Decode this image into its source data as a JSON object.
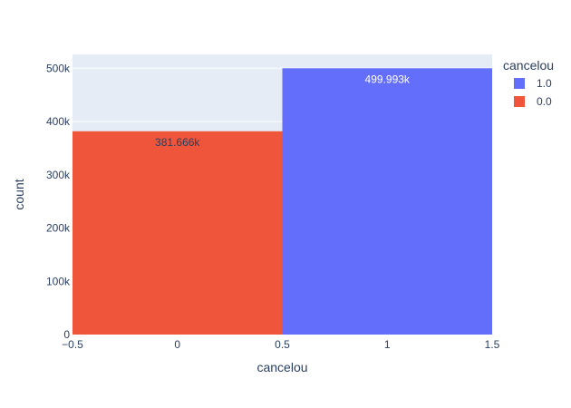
{
  "chart_data": {
    "type": "bar",
    "xlabel": "cancelou",
    "ylabel": "count",
    "xlim": [
      -0.5,
      1.5
    ],
    "ylim": [
      0,
      526000
    ],
    "x_ticks": [
      -0.5,
      0,
      0.5,
      1,
      1.5
    ],
    "x_tick_labels": [
      "−0.5",
      "0",
      "0.5",
      "1",
      "1.5"
    ],
    "y_ticks": [
      0,
      100000,
      200000,
      300000,
      400000,
      500000
    ],
    "y_tick_labels": [
      "0",
      "100k",
      "200k",
      "300k",
      "400k",
      "500k"
    ],
    "grid": true,
    "legend": {
      "title": "cancelou",
      "placement": "top-right",
      "entries": [
        {
          "label": "1.0",
          "color": "#636efa"
        },
        {
          "label": "0.0",
          "color": "#ef553b"
        }
      ]
    },
    "series": [
      {
        "name": "0.0",
        "x_start": -0.5,
        "x_end": 0.5,
        "value": 381666,
        "label": "381.666k",
        "color": "#ef553b",
        "label_color": "#2a3f5f"
      },
      {
        "name": "1.0",
        "x_start": 0.5,
        "x_end": 1.5,
        "value": 499993,
        "label": "499.993k",
        "color": "#636efa",
        "label_color": "#ffffff"
      }
    ],
    "plot_background": "#e5ecf6",
    "grid_color": "#ffffff",
    "text_color": "#2a3f5f"
  }
}
